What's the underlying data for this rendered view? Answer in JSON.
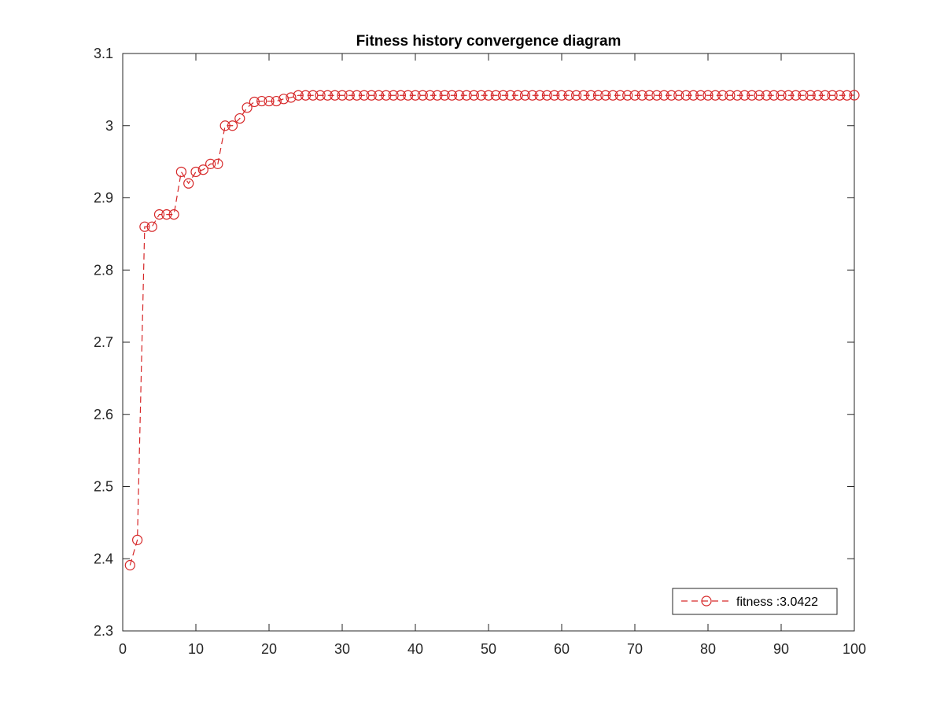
{
  "chart_data": {
    "type": "line",
    "title": "Fitness history convergence diagram",
    "xlabel": "",
    "ylabel": "",
    "xlim": [
      0,
      100
    ],
    "ylim": [
      2.3,
      3.1
    ],
    "x_ticks": [
      0,
      10,
      20,
      30,
      40,
      50,
      60,
      70,
      80,
      90,
      100
    ],
    "y_ticks": [
      2.3,
      2.4,
      2.5,
      2.6,
      2.7,
      2.8,
      2.9,
      3.0,
      3.1
    ],
    "x_tick_labels": [
      "0",
      "10",
      "20",
      "30",
      "40",
      "50",
      "60",
      "70",
      "80",
      "90",
      "100"
    ],
    "y_tick_labels": [
      "2.3",
      "2.4",
      "2.5",
      "2.6",
      "2.7",
      "2.8",
      "2.9",
      "3",
      "3.1"
    ],
    "grid": false,
    "legend_position": "bottom-right",
    "series": [
      {
        "name": "fitness :3.0422",
        "color": "#d62728",
        "line_style": "dashed",
        "marker": "circle",
        "x": [
          1,
          2,
          3,
          4,
          5,
          6,
          7,
          8,
          9,
          10,
          11,
          12,
          13,
          14,
          15,
          16,
          17,
          18,
          19,
          20,
          21,
          22,
          23,
          24,
          25,
          26,
          27,
          28,
          29,
          30,
          31,
          32,
          33,
          34,
          35,
          36,
          37,
          38,
          39,
          40,
          41,
          42,
          43,
          44,
          45,
          46,
          47,
          48,
          49,
          50,
          51,
          52,
          53,
          54,
          55,
          56,
          57,
          58,
          59,
          60,
          61,
          62,
          63,
          64,
          65,
          66,
          67,
          68,
          69,
          70,
          71,
          72,
          73,
          74,
          75,
          76,
          77,
          78,
          79,
          80,
          81,
          82,
          83,
          84,
          85,
          86,
          87,
          88,
          89,
          90,
          91,
          92,
          93,
          94,
          95,
          96,
          97,
          98,
          99,
          100
        ],
        "values": [
          2.391,
          2.426,
          2.86,
          2.86,
          2.877,
          2.877,
          2.877,
          2.936,
          2.92,
          2.936,
          2.939,
          2.947,
          2.947,
          3.0,
          3.0,
          3.01,
          3.025,
          3.033,
          3.034,
          3.034,
          3.034,
          3.037,
          3.039,
          3.042,
          3.042,
          3.042,
          3.042,
          3.042,
          3.042,
          3.042,
          3.042,
          3.042,
          3.042,
          3.042,
          3.042,
          3.042,
          3.042,
          3.042,
          3.042,
          3.042,
          3.042,
          3.042,
          3.042,
          3.042,
          3.042,
          3.042,
          3.042,
          3.042,
          3.042,
          3.042,
          3.042,
          3.042,
          3.042,
          3.042,
          3.042,
          3.042,
          3.042,
          3.042,
          3.042,
          3.042,
          3.042,
          3.042,
          3.042,
          3.042,
          3.042,
          3.042,
          3.042,
          3.042,
          3.042,
          3.042,
          3.042,
          3.042,
          3.042,
          3.042,
          3.042,
          3.042,
          3.042,
          3.042,
          3.042,
          3.042,
          3.042,
          3.042,
          3.042,
          3.042,
          3.042,
          3.042,
          3.042,
          3.042,
          3.042,
          3.042,
          3.042,
          3.042,
          3.042,
          3.042,
          3.042,
          3.042,
          3.042,
          3.042,
          3.042,
          3.0422
        ]
      }
    ]
  }
}
